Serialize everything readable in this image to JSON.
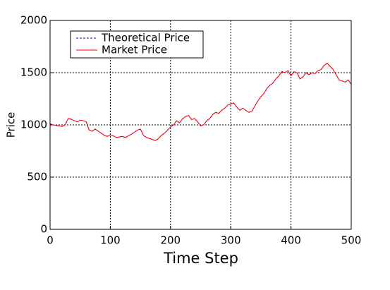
{
  "chart_data": {
    "type": "line",
    "x_label": "Time Step",
    "y_label": "Price",
    "x": [
      0,
      5,
      10,
      15,
      20,
      25,
      30,
      35,
      40,
      45,
      50,
      55,
      60,
      65,
      70,
      75,
      80,
      85,
      90,
      95,
      100,
      105,
      110,
      115,
      120,
      125,
      130,
      135,
      140,
      145,
      150,
      155,
      160,
      165,
      170,
      175,
      180,
      185,
      190,
      195,
      200,
      205,
      210,
      215,
      220,
      225,
      230,
      235,
      240,
      245,
      250,
      255,
      260,
      265,
      270,
      275,
      280,
      285,
      290,
      295,
      300,
      305,
      310,
      315,
      320,
      325,
      330,
      335,
      340,
      345,
      350,
      355,
      360,
      365,
      370,
      375,
      380,
      385,
      390,
      395,
      400,
      405,
      410,
      415,
      420,
      425,
      430,
      435,
      440,
      445,
      450,
      455,
      460,
      465,
      470,
      475,
      480,
      485,
      490,
      495,
      500
    ],
    "series": [
      {
        "name": "Theoretical Price",
        "color": "#0000ff",
        "dashed": true,
        "values": [
          1010,
          1000,
          995,
          990,
          985,
          1000,
          1060,
          1055,
          1040,
          1030,
          1045,
          1040,
          1030,
          950,
          940,
          960,
          940,
          920,
          900,
          890,
          905,
          895,
          880,
          885,
          890,
          880,
          895,
          910,
          930,
          950,
          960,
          900,
          880,
          870,
          860,
          850,
          870,
          900,
          920,
          950,
          980,
          1000,
          1040,
          1020,
          1060,
          1080,
          1090,
          1050,
          1060,
          1030,
          990,
          1000,
          1040,
          1060,
          1100,
          1120,
          1110,
          1140,
          1160,
          1190,
          1200,
          1210,
          1170,
          1140,
          1160,
          1140,
          1120,
          1130,
          1180,
          1230,
          1270,
          1300,
          1350,
          1380,
          1400,
          1440,
          1470,
          1510,
          1500,
          1520,
          1470,
          1510,
          1500,
          1440,
          1460,
          1500,
          1480,
          1500,
          1490,
          1520,
          1530,
          1570,
          1590,
          1560,
          1530,
          1480,
          1430,
          1420,
          1410,
          1430,
          1390
        ]
      },
      {
        "name": "Market Price",
        "color": "#ff0000",
        "dashed": false,
        "values": [
          1010,
          1000,
          995,
          990,
          985,
          1000,
          1060,
          1055,
          1040,
          1030,
          1045,
          1040,
          1030,
          950,
          940,
          960,
          940,
          920,
          900,
          890,
          905,
          895,
          880,
          885,
          890,
          880,
          895,
          910,
          930,
          950,
          960,
          900,
          880,
          870,
          860,
          850,
          870,
          900,
          920,
          950,
          980,
          1000,
          1040,
          1020,
          1060,
          1080,
          1090,
          1050,
          1060,
          1030,
          990,
          1000,
          1040,
          1060,
          1100,
          1120,
          1110,
          1140,
          1160,
          1190,
          1200,
          1210,
          1170,
          1140,
          1160,
          1140,
          1120,
          1130,
          1180,
          1230,
          1270,
          1300,
          1350,
          1380,
          1400,
          1440,
          1470,
          1510,
          1500,
          1520,
          1470,
          1510,
          1500,
          1440,
          1460,
          1500,
          1480,
          1500,
          1490,
          1520,
          1530,
          1570,
          1590,
          1560,
          1530,
          1480,
          1430,
          1420,
          1410,
          1430,
          1390
        ]
      }
    ],
    "xlim": [
      0,
      500
    ],
    "xticks": [
      0,
      100,
      200,
      300,
      400,
      500
    ],
    "ylim": [
      0,
      2000
    ],
    "yticks": [
      0,
      500,
      1000,
      1500,
      2000
    ],
    "grid": true,
    "legend": "upper-left"
  }
}
